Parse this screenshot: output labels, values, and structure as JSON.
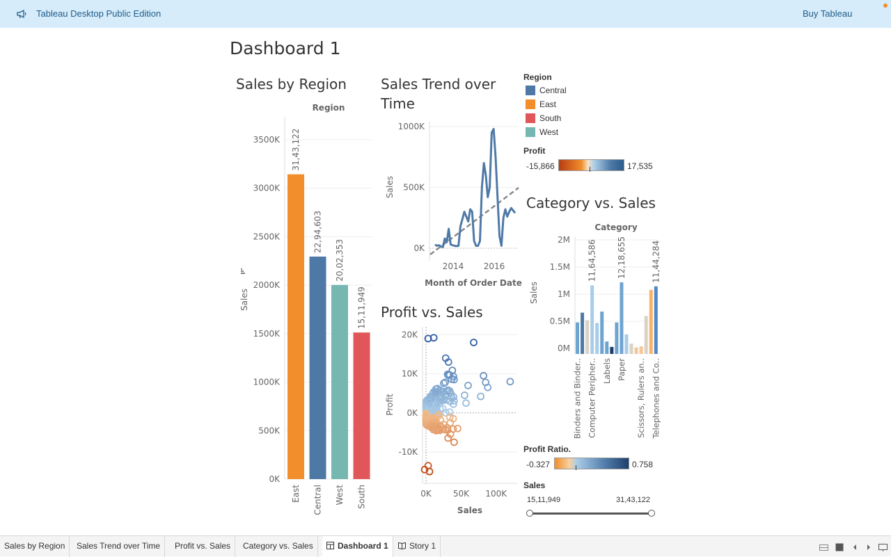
{
  "app": {
    "title": "Tableau Desktop Public Edition",
    "buy_label": "Buy Tableau"
  },
  "dashboard": {
    "title": "Dashboard 1"
  },
  "sheets": {
    "sales_by_region": {
      "title": "Sales by Region"
    },
    "sales_trend": {
      "title_line1": "Sales Trend over",
      "title_line2": "Time"
    },
    "profit_vs_sales": {
      "title": "Profit vs. Sales"
    },
    "category_vs_sales": {
      "title": "Category vs. Sales"
    }
  },
  "legend_region": {
    "title": "Region",
    "items": [
      {
        "label": "Central",
        "color": "#4e79a7"
      },
      {
        "label": "East",
        "color": "#f28e2b"
      },
      {
        "label": "South",
        "color": "#e15759"
      },
      {
        "label": "West",
        "color": "#76b7b2"
      }
    ]
  },
  "legend_profit": {
    "title": "Profit",
    "min": "-15,866",
    "max": "17,535"
  },
  "legend_profit_ratio": {
    "title": "Profit Ratio.",
    "min": "-0.327",
    "max": "0.758"
  },
  "sales_filter": {
    "title": "Sales",
    "min": "15,11,949",
    "max": "31,43,122"
  },
  "tabs": [
    {
      "label": "Sales by Region",
      "active": false
    },
    {
      "label": "Sales Trend over Time",
      "active": false
    },
    {
      "label": "Profit vs. Sales",
      "active": false
    },
    {
      "label": "Category vs. Sales",
      "active": false
    },
    {
      "label": "Dashboard 1",
      "active": true,
      "icon": "grid-icon"
    },
    {
      "label": "Story 1",
      "active": false,
      "icon": "book-icon"
    }
  ],
  "chart_data": [
    {
      "type": "bar",
      "title": "Sales by Region",
      "column_header": "Region",
      "ylabel": "Sales",
      "ylim": [
        0,
        3700000
      ],
      "yticks": [
        "0K",
        "500K",
        "1000K",
        "1500K",
        "2000K",
        "2500K",
        "3000K",
        "3500K"
      ],
      "categories": [
        "East",
        "Central",
        "West",
        "South"
      ],
      "values": [
        3143122,
        2294603,
        2002353,
        1511949
      ],
      "labels": [
        "31,43,122",
        "22,94,603",
        "20,02,353",
        "15,11,949"
      ],
      "colors": [
        "#f28e2b",
        "#4e79a7",
        "#76b7b2",
        "#e15759"
      ]
    },
    {
      "type": "line",
      "title": "Sales Trend over Time",
      "xlabel": "Month of Order Date",
      "ylabel": "Sales",
      "ylim": [
        0,
        1000000
      ],
      "yticks": [
        "0K",
        "500K",
        "1000K"
      ],
      "xticks": [
        "2014",
        "2016"
      ],
      "series_color": "#4e79a7",
      "trend_line": true,
      "values": [
        30000,
        20000,
        25000,
        15000,
        10000,
        80000,
        50000,
        160000,
        30000,
        25000,
        20000,
        18000,
        20000,
        180000,
        240000,
        300000,
        260000,
        220000,
        320000,
        300000,
        60000,
        20000,
        20000,
        60000,
        500000,
        700000,
        600000,
        420000,
        500000,
        950000,
        980000,
        750000,
        420000,
        100000,
        20000,
        250000,
        320000,
        260000,
        300000,
        330000,
        310000,
        290000
      ]
    },
    {
      "type": "scatter",
      "title": "Profit vs. Sales",
      "xlabel": "Sales",
      "ylabel": "Profit",
      "xticks": [
        "0K",
        "50K",
        "100K"
      ],
      "yticks": [
        "20K",
        "10K",
        "0K",
        "-10K"
      ],
      "xlim": [
        -5000,
        130000
      ],
      "ylim": [
        -18000,
        22000
      ]
    },
    {
      "type": "bar",
      "title": "Category vs. Sales",
      "column_header": "Category",
      "ylabel": "Sales",
      "ylim": [
        -100000,
        2000000
      ],
      "yticks": [
        "0M",
        "0.5M",
        "1M",
        "1.5M",
        "2M"
      ],
      "xticks": [
        "Binders and Binder..",
        "Computer Peripher..",
        "Labels",
        "Paper",
        "Scissors, Rulers an..",
        "Telephones and Co.."
      ],
      "values": [
        480000,
        660000,
        520000,
        1164586,
        470000,
        680000,
        130000,
        30000,
        480000,
        1218655,
        260000,
        90000,
        20000,
        40000,
        600000,
        1080000,
        1144284
      ],
      "labels": [
        null,
        null,
        null,
        "11,64,586",
        null,
        null,
        null,
        null,
        null,
        "12,18,655",
        null,
        null,
        null,
        null,
        null,
        null,
        "11,44,284"
      ]
    }
  ]
}
